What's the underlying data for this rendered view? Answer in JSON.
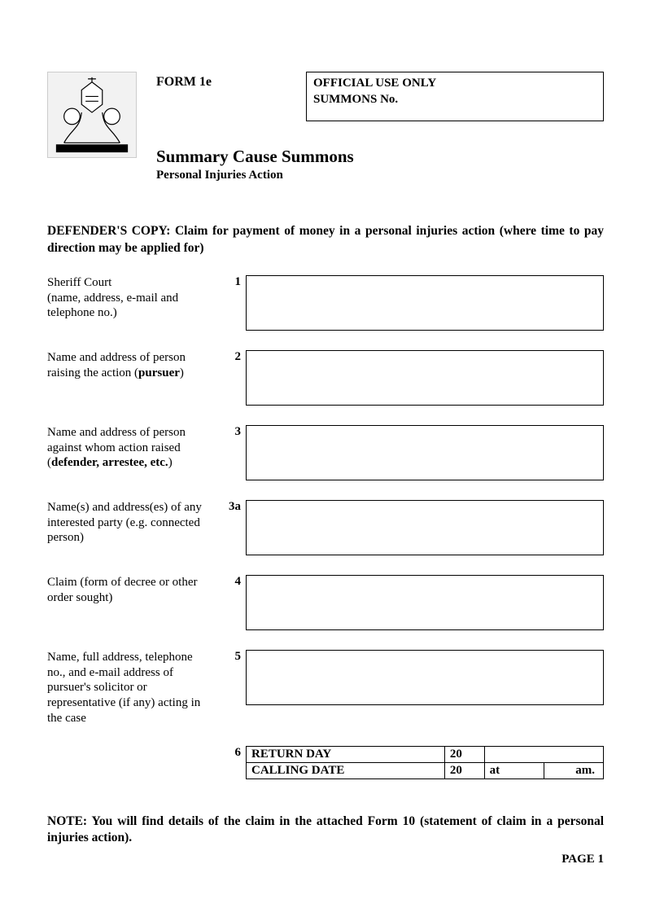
{
  "header": {
    "form_label": "FORM 1e",
    "official_line1": "OFFICIAL USE ONLY",
    "official_line2": "SUMMONS No.",
    "title": "Summary Cause Summons",
    "subtitle": "Personal Injuries Action"
  },
  "defender_copy": {
    "lead": "DEFENDER'S COPY",
    "rest": ": Claim for payment of money in a personal injuries action (where time to pay direction may be applied for)"
  },
  "fields": [
    {
      "num": "1",
      "label_html": "Sheriff Court<br>(name, address, e-mail and telephone no.)"
    },
    {
      "num": "2",
      "label_html": "Name and address of person raising the action (<b>pursuer</b>)"
    },
    {
      "num": "3",
      "label_html": "Name and address of person against whom action raised (<b>defender, arrestee, etc.</b>)"
    },
    {
      "num": "3a",
      "label_html": "Name(s) and address(es) of any interested party (e.g. connected person)"
    },
    {
      "num": "4",
      "label_html": "Claim (form of decree or other order sought)"
    },
    {
      "num": "5",
      "label_html": "Name, full address, telephone no., and e-mail address of pursuer's solicitor or representative (if any) acting in the case"
    }
  ],
  "row6": {
    "num": "6",
    "return_label": "RETURN DAY",
    "calling_label": "CALLING DATE",
    "year_prefix": "20",
    "at_label": "at",
    "ampm": "am."
  },
  "note": "NOTE: You will find details of the claim in the attached Form 10 (statement of claim in a personal injuries action).",
  "page": "PAGE 1"
}
